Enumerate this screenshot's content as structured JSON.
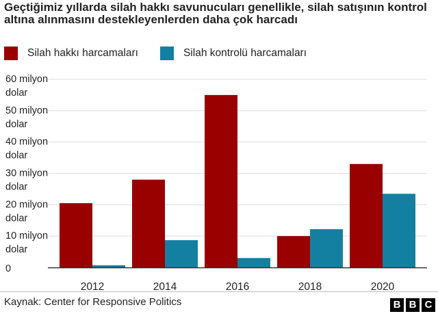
{
  "title": "Geçtiğimiz yıllarda silah hakkı savunucuları genellikle, silah satışının kontrol altına alınmasını destekleyenlerden daha çok harcadı",
  "legend": [
    {
      "label": "Silah hakkı harcamaları",
      "color": "#990000"
    },
    {
      "label": "Silah kontrolü harcamaları",
      "color": "#1380a1"
    }
  ],
  "source": "Kaynak: Center for Responsive Politics",
  "logo": [
    "B",
    "B",
    "C"
  ],
  "chart_data": {
    "type": "bar",
    "categories": [
      "2012",
      "2014",
      "2016",
      "2018",
      "2020"
    ],
    "series": [
      {
        "name": "Silah hakkı harcamaları",
        "color": "#990000",
        "values": [
          20.5,
          28,
          55,
          10,
          33
        ]
      },
      {
        "name": "Silah kontrolü harcamaları",
        "color": "#1380a1",
        "values": [
          0.7,
          8.7,
          3,
          12.2,
          23.5
        ]
      }
    ],
    "ylim": [
      0,
      60
    ],
    "yticks": [
      {
        "value": 0,
        "label": [
          "0"
        ]
      },
      {
        "value": 10,
        "label": [
          "10 milyon",
          "dolar"
        ]
      },
      {
        "value": 20,
        "label": [
          "20 milyon",
          "dolar"
        ]
      },
      {
        "value": 30,
        "label": [
          "30 milyon",
          "dolar"
        ]
      },
      {
        "value": 40,
        "label": [
          "40 milyon",
          "dolar"
        ]
      },
      {
        "value": 50,
        "label": [
          "50 milyon",
          "dolar"
        ]
      },
      {
        "value": 60,
        "label": [
          "60 milyon",
          "dolar"
        ]
      }
    ],
    "grid": true,
    "legend_position": "top-left"
  }
}
